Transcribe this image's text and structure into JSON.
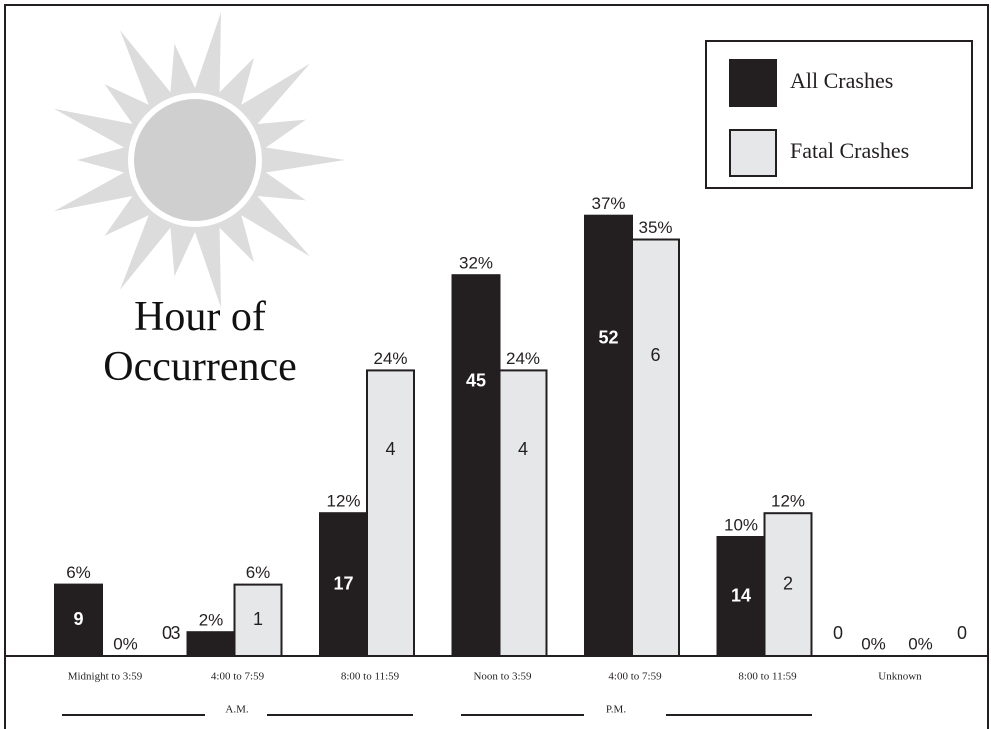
{
  "chart_data": {
    "type": "bar",
    "title": "Hour of Occurrence",
    "categories": [
      "Midnight to 3:59",
      "4:00 to 7:59",
      "8:00 to 11:59",
      "Noon to 3:59",
      "4:00 to 7:59",
      "8:00 to 11:59",
      "Unknown"
    ],
    "groups": [
      "A.M.",
      "P.M."
    ],
    "series": [
      {
        "name": "All Crashes",
        "color": "#231f20",
        "values": [
          6,
          2,
          12,
          32,
          37,
          10,
          0
        ],
        "value_labels": [
          "6%",
          "2%",
          "12%",
          "32%",
          "37%",
          "10%",
          "0%"
        ],
        "counts": [
          9,
          3,
          17,
          45,
          52,
          14,
          0
        ]
      },
      {
        "name": "Fatal Crashes",
        "color": "#e6e7e8",
        "values": [
          0,
          6,
          24,
          24,
          35,
          12,
          0
        ],
        "value_labels": [
          "0%",
          "6%",
          "24%",
          "24%",
          "35%",
          "12%",
          "0%"
        ],
        "counts": [
          0,
          1,
          4,
          4,
          6,
          2,
          0
        ]
      }
    ],
    "legend": "top-right"
  }
}
